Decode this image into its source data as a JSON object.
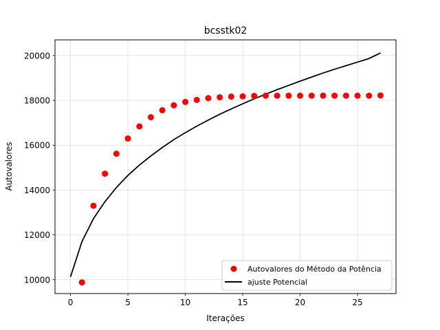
{
  "chart_data": {
    "type": "scatter",
    "title": "bcsstk02",
    "xlabel": "Iterações",
    "ylabel": "Autovalores",
    "xlim": [
      -1.35,
      28.35
    ],
    "ylim": [
      9380,
      20700
    ],
    "xticks": [
      0,
      5,
      10,
      15,
      20,
      25
    ],
    "yticks": [
      10000,
      12000,
      14000,
      16000,
      18000,
      20000
    ],
    "grid": true,
    "legend_position": "lower-right",
    "series": [
      {
        "name": "Autovalores do Método da Potência",
        "kind": "scatter",
        "color": "#ff0000",
        "x": [
          1,
          2,
          3,
          4,
          5,
          6,
          7,
          8,
          9,
          10,
          11,
          12,
          13,
          14,
          15,
          16,
          17,
          18,
          19,
          20,
          21,
          22,
          23,
          24,
          25,
          26,
          27
        ],
        "y": [
          9880,
          13300,
          14730,
          15620,
          16300,
          16840,
          17250,
          17560,
          17780,
          17930,
          18020,
          18100,
          18140,
          18170,
          18180,
          18200,
          18210,
          18210,
          18210,
          18210,
          18210,
          18210,
          18210,
          18210,
          18210,
          18210,
          18220
        ]
      },
      {
        "name": "ajuste Potencial",
        "kind": "line",
        "color": "#000000",
        "x": [
          0,
          1,
          2,
          3,
          4,
          5,
          6,
          7,
          8,
          9,
          10,
          11,
          12,
          13,
          14,
          15,
          16,
          17,
          18,
          19,
          20,
          21,
          22,
          23,
          24,
          25,
          26,
          27
        ],
        "y": [
          10120,
          11700,
          12720,
          13480,
          14110,
          14650,
          15110,
          15520,
          15900,
          16250,
          16560,
          16850,
          17120,
          17380,
          17620,
          17850,
          18070,
          18280,
          18480,
          18670,
          18860,
          19040,
          19220,
          19390,
          19550,
          19710,
          19870,
          20120
        ]
      }
    ]
  }
}
